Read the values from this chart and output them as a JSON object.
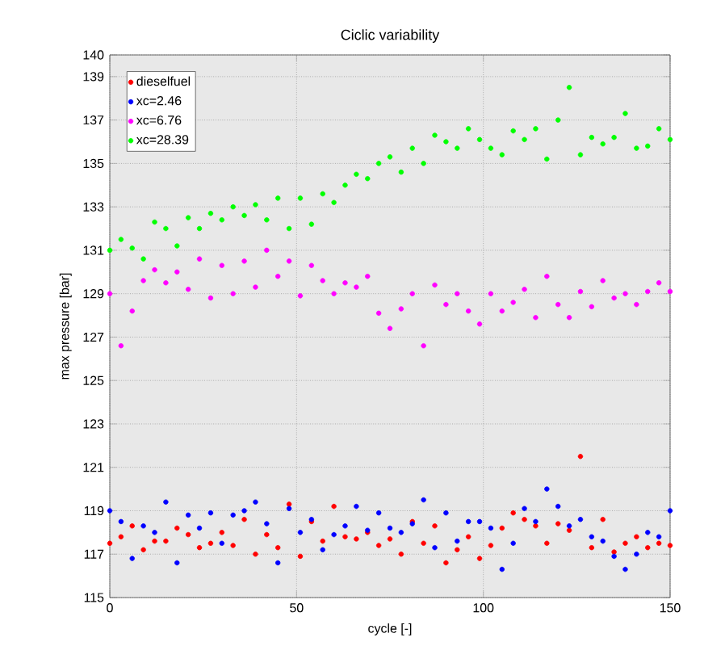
{
  "chart_data": {
    "type": "scatter",
    "title": "Ciclic variability",
    "xlabel": "cycle [-]",
    "ylabel": "max pressure [bar]",
    "x": [
      0,
      3,
      6,
      9,
      12,
      15,
      18,
      21,
      24,
      27,
      30,
      33,
      36,
      39,
      42,
      45,
      48,
      51,
      54,
      57,
      60,
      63,
      66,
      69,
      72,
      75,
      78,
      81,
      84,
      87,
      90,
      93,
      96,
      99,
      102,
      105,
      108,
      111,
      114,
      117,
      120,
      123,
      126,
      129,
      132,
      135,
      138,
      141,
      144,
      147,
      150
    ],
    "series": [
      {
        "name": "dieselfuel",
        "color": "#ff0000",
        "values": [
          117.5,
          117.8,
          118.3,
          117.2,
          117.6,
          117.6,
          118.2,
          117.9,
          117.3,
          117.5,
          118.0,
          117.4,
          118.6,
          117.0,
          117.9,
          117.3,
          119.3,
          116.9,
          118.5,
          117.6,
          119.2,
          117.8,
          117.7,
          118.0,
          117.4,
          117.7,
          117.0,
          118.5,
          117.5,
          118.3,
          116.6,
          117.2,
          117.8,
          116.8,
          117.4,
          118.2,
          118.9,
          118.6,
          118.3,
          117.5,
          118.4,
          118.1,
          121.5,
          117.3,
          118.6,
          117.1,
          117.5,
          117.8,
          117.3,
          117.5,
          117.4
        ]
      },
      {
        "name": "xc=2.46",
        "color": "#0000ff",
        "values": [
          119.0,
          118.5,
          116.8,
          118.3,
          118.0,
          119.4,
          116.6,
          118.8,
          118.2,
          118.9,
          117.5,
          118.8,
          119.0,
          119.4,
          118.4,
          116.6,
          119.1,
          118.0,
          118.6,
          117.2,
          117.9,
          118.3,
          119.2,
          118.1,
          118.9,
          118.2,
          118.0,
          118.4,
          119.5,
          117.3,
          118.9,
          117.6,
          118.5,
          118.5,
          118.2,
          116.3,
          117.5,
          119.1,
          118.5,
          120.0,
          119.2,
          118.3,
          118.6,
          117.8,
          117.6,
          116.9,
          116.3,
          117.0,
          118.0,
          117.8,
          119.0
        ]
      },
      {
        "name": "xc=6.76",
        "color": "#ff00ff",
        "values": [
          129.0,
          126.6,
          128.2,
          129.6,
          130.1,
          129.5,
          130.0,
          129.2,
          130.6,
          128.8,
          130.3,
          129.0,
          130.5,
          129.3,
          131.0,
          129.8,
          130.5,
          128.9,
          130.3,
          129.6,
          129.0,
          129.5,
          129.3,
          129.8,
          128.1,
          127.4,
          128.3,
          129.0,
          126.6,
          129.4,
          128.5,
          129.0,
          128.2,
          127.6,
          129.0,
          128.2,
          128.6,
          129.2,
          127.9,
          129.8,
          128.5,
          127.9,
          129.1,
          128.4,
          129.6,
          128.8,
          129.0,
          128.5,
          129.1,
          129.5,
          129.1
        ]
      },
      {
        "name": "xc=28.39",
        "color": "#00ff00",
        "values": [
          131.0,
          131.5,
          131.1,
          130.6,
          132.3,
          132.0,
          131.2,
          132.5,
          132.0,
          132.7,
          132.4,
          133.0,
          132.6,
          133.1,
          132.4,
          133.4,
          132.0,
          133.4,
          132.2,
          133.6,
          133.2,
          134.0,
          134.5,
          134.3,
          135.0,
          135.3,
          134.6,
          135.7,
          135.0,
          136.3,
          136.0,
          135.7,
          136.6,
          136.1,
          135.7,
          135.4,
          136.5,
          136.1,
          136.6,
          135.2,
          137.0,
          138.5,
          135.4,
          136.2,
          135.9,
          136.2,
          137.3,
          135.7,
          135.8,
          136.6,
          136.1
        ]
      }
    ],
    "xlim": [
      0,
      150
    ],
    "xticks": [
      0,
      50,
      100,
      150
    ],
    "ylim": [
      115,
      140
    ],
    "yticks": [
      115,
      117,
      119,
      121,
      123,
      125,
      127,
      129,
      131,
      133,
      135,
      137,
      139,
      140
    ],
    "grid": true,
    "legend": "top left"
  }
}
